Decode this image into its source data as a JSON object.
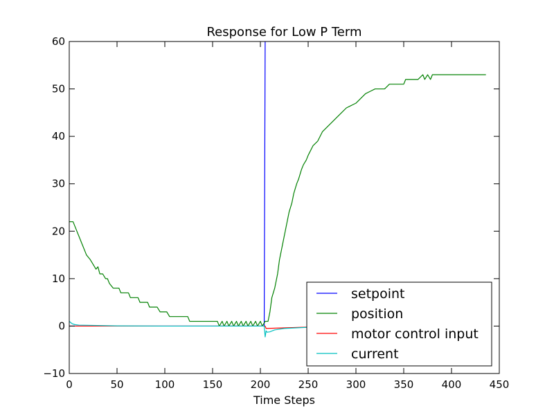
{
  "chart_data": {
    "type": "line",
    "title": "Response for Low P Term",
    "xlabel": "Time Steps",
    "ylabel": "",
    "xlim": [
      0,
      450
    ],
    "ylim": [
      -10,
      60
    ],
    "xticks": [
      0,
      50,
      100,
      150,
      200,
      250,
      300,
      350,
      400,
      450
    ],
    "yticks": [
      -10,
      0,
      10,
      20,
      30,
      40,
      50,
      60
    ],
    "grid": false,
    "legend_position": "lower-right",
    "series": [
      {
        "name": "setpoint",
        "color": "#0000ff",
        "points": [
          [
            0,
            0
          ],
          [
            204,
            0
          ],
          [
            205,
            60
          ],
          [
            205,
            60
          ]
        ]
      },
      {
        "name": "position",
        "color": "#008000",
        "points": [
          [
            0,
            22
          ],
          [
            4,
            22
          ],
          [
            6,
            21
          ],
          [
            8,
            20
          ],
          [
            10,
            19
          ],
          [
            12,
            18
          ],
          [
            14,
            17
          ],
          [
            16,
            16
          ],
          [
            18,
            15
          ],
          [
            20,
            14.5
          ],
          [
            22,
            14
          ],
          [
            25,
            13
          ],
          [
            28,
            12
          ],
          [
            30,
            12.5
          ],
          [
            32,
            11
          ],
          [
            35,
            11
          ],
          [
            38,
            10
          ],
          [
            40,
            10
          ],
          [
            42,
            9
          ],
          [
            46,
            8
          ],
          [
            52,
            8
          ],
          [
            54,
            7
          ],
          [
            62,
            7
          ],
          [
            64,
            6
          ],
          [
            72,
            6
          ],
          [
            74,
            5
          ],
          [
            82,
            5
          ],
          [
            84,
            4
          ],
          [
            92,
            4
          ],
          [
            95,
            3
          ],
          [
            102,
            3
          ],
          [
            105,
            2
          ],
          [
            124,
            2
          ],
          [
            126,
            1
          ],
          [
            155,
            1
          ],
          [
            157,
            0
          ],
          [
            160,
            1
          ],
          [
            162,
            0
          ],
          [
            165,
            1
          ],
          [
            167,
            0
          ],
          [
            170,
            1
          ],
          [
            172,
            0
          ],
          [
            175,
            1
          ],
          [
            177,
            0
          ],
          [
            180,
            1
          ],
          [
            182,
            0
          ],
          [
            185,
            1
          ],
          [
            187,
            0
          ],
          [
            190,
            1
          ],
          [
            192,
            0
          ],
          [
            195,
            1
          ],
          [
            197,
            0
          ],
          [
            200,
            1
          ],
          [
            202,
            0
          ],
          [
            205,
            1
          ],
          [
            208,
            1
          ],
          [
            210,
            3
          ],
          [
            212,
            6
          ],
          [
            215,
            8
          ],
          [
            218,
            11
          ],
          [
            220,
            14
          ],
          [
            222,
            16
          ],
          [
            225,
            19
          ],
          [
            228,
            22
          ],
          [
            230,
            24
          ],
          [
            233,
            26
          ],
          [
            235,
            28
          ],
          [
            238,
            30
          ],
          [
            240,
            31
          ],
          [
            243,
            33
          ],
          [
            245,
            34
          ],
          [
            248,
            35
          ],
          [
            250,
            36
          ],
          [
            255,
            38
          ],
          [
            260,
            39
          ],
          [
            265,
            41
          ],
          [
            270,
            42
          ],
          [
            275,
            43
          ],
          [
            280,
            44
          ],
          [
            285,
            45
          ],
          [
            290,
            46
          ],
          [
            295,
            46.5
          ],
          [
            300,
            47
          ],
          [
            305,
            48
          ],
          [
            310,
            49
          ],
          [
            315,
            49.5
          ],
          [
            320,
            50
          ],
          [
            330,
            50
          ],
          [
            335,
            51
          ],
          [
            350,
            51
          ],
          [
            352,
            52
          ],
          [
            365,
            52
          ],
          [
            370,
            53
          ],
          [
            372,
            52
          ],
          [
            375,
            53
          ],
          [
            378,
            52
          ],
          [
            380,
            53
          ],
          [
            400,
            53
          ],
          [
            436,
            53
          ]
        ]
      },
      {
        "name": "motor control input",
        "color": "#ff0000",
        "points": [
          [
            0,
            0
          ],
          [
            205,
            0
          ],
          [
            206,
            -0.5
          ],
          [
            250,
            -0.2
          ],
          [
            436,
            0
          ]
        ]
      },
      {
        "name": "current",
        "color": "#00bfbf",
        "points": [
          [
            0,
            1.0
          ],
          [
            3,
            0.5
          ],
          [
            6,
            0.3
          ],
          [
            10,
            0.2
          ],
          [
            50,
            0.05
          ],
          [
            100,
            0
          ],
          [
            200,
            0
          ],
          [
            204,
            0
          ],
          [
            205,
            -2.3
          ],
          [
            206,
            -1.0
          ],
          [
            207,
            -1.3
          ],
          [
            210,
            -1.2
          ],
          [
            215,
            -0.8
          ],
          [
            225,
            -0.5
          ],
          [
            245,
            -0.3
          ],
          [
            260,
            -0.2
          ],
          [
            436,
            0
          ]
        ]
      }
    ]
  }
}
